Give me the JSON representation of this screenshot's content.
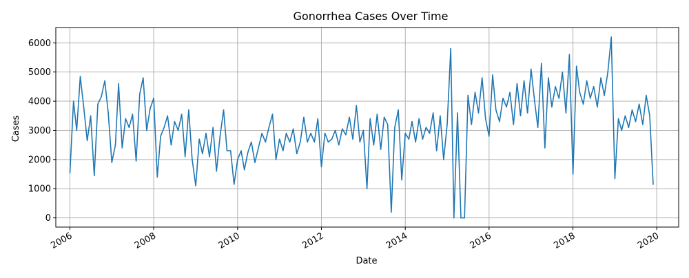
{
  "chart_data": {
    "type": "line",
    "title": "Gonorrhea Cases Over Time",
    "xlabel": "Date",
    "ylabel": "Cases",
    "xlim": [
      "2005-08-31",
      "2020-07-10"
    ],
    "ylim": [
      -315,
      6525
    ],
    "xticks": [
      "2006",
      "2008",
      "2010",
      "2012",
      "2014",
      "2016",
      "2018",
      "2020"
    ],
    "yticks": [
      0,
      1000,
      2000,
      3000,
      4000,
      5000,
      6000
    ],
    "grid": true,
    "line_color": "#1f77b4",
    "series": [
      {
        "name": "",
        "x": [
          "2006-01-01",
          "2006-02-01",
          "2006-03-01",
          "2006-04-01",
          "2006-05-01",
          "2006-06-01",
          "2006-07-01",
          "2006-08-01",
          "2006-09-01",
          "2006-10-01",
          "2006-11-01",
          "2006-12-01",
          "2007-01-01",
          "2007-02-01",
          "2007-03-01",
          "2007-04-01",
          "2007-05-01",
          "2007-06-01",
          "2007-07-01",
          "2007-08-01",
          "2007-09-01",
          "2007-10-01",
          "2007-11-01",
          "2007-12-01",
          "2008-01-01",
          "2008-02-01",
          "2008-03-01",
          "2008-04-01",
          "2008-05-01",
          "2008-06-01",
          "2008-07-01",
          "2008-08-01",
          "2008-09-01",
          "2008-10-01",
          "2008-11-01",
          "2008-12-01",
          "2009-01-01",
          "2009-02-01",
          "2009-03-01",
          "2009-04-01",
          "2009-05-01",
          "2009-06-01",
          "2009-07-01",
          "2009-08-01",
          "2009-09-01",
          "2009-10-01",
          "2009-11-01",
          "2009-12-01",
          "2010-01-01",
          "2010-02-01",
          "2010-03-01",
          "2010-04-01",
          "2010-05-01",
          "2010-06-01",
          "2010-07-01",
          "2010-08-01",
          "2010-09-01",
          "2010-10-01",
          "2010-11-01",
          "2010-12-01",
          "2011-01-01",
          "2011-02-01",
          "2011-03-01",
          "2011-04-01",
          "2011-05-01",
          "2011-06-01",
          "2011-07-01",
          "2011-08-01",
          "2011-09-01",
          "2011-10-01",
          "2011-11-01",
          "2011-12-01",
          "2012-01-01",
          "2012-02-01",
          "2012-03-01",
          "2012-04-01",
          "2012-05-01",
          "2012-06-01",
          "2012-07-01",
          "2012-08-01",
          "2012-09-01",
          "2012-10-01",
          "2012-11-01",
          "2012-12-01",
          "2013-01-01",
          "2013-02-01",
          "2013-03-01",
          "2013-04-01",
          "2013-05-01",
          "2013-06-01",
          "2013-07-01",
          "2013-08-01",
          "2013-09-01",
          "2013-10-01",
          "2013-11-01",
          "2013-12-01",
          "2014-01-01",
          "2014-02-01",
          "2014-03-01",
          "2014-04-01",
          "2014-05-01",
          "2014-06-01",
          "2014-07-01",
          "2014-08-01",
          "2014-09-01",
          "2014-10-01",
          "2014-11-01",
          "2014-12-01",
          "2015-01-01",
          "2015-02-01",
          "2015-03-01",
          "2015-04-01",
          "2015-05-01",
          "2015-06-01",
          "2015-07-01",
          "2015-08-01",
          "2015-09-01",
          "2015-10-01",
          "2015-11-01",
          "2015-12-01",
          "2016-01-01",
          "2016-02-01",
          "2016-03-01",
          "2016-04-01",
          "2016-05-01",
          "2016-06-01",
          "2016-07-01",
          "2016-08-01",
          "2016-09-01",
          "2016-10-01",
          "2016-11-01",
          "2016-12-01",
          "2017-01-01",
          "2017-02-01",
          "2017-03-01",
          "2017-04-01",
          "2017-05-01",
          "2017-06-01",
          "2017-07-01",
          "2017-08-01",
          "2017-09-01",
          "2017-10-01",
          "2017-11-01",
          "2017-12-01",
          "2018-01-01",
          "2018-02-01",
          "2018-03-01",
          "2018-04-01",
          "2018-05-01",
          "2018-06-01",
          "2018-07-01",
          "2018-08-01",
          "2018-09-01",
          "2018-10-01",
          "2018-11-01",
          "2018-12-01",
          "2019-01-01",
          "2019-02-01",
          "2019-03-01",
          "2019-04-01",
          "2019-05-01",
          "2019-06-01",
          "2019-07-01",
          "2019-08-01",
          "2019-09-01",
          "2019-10-01",
          "2019-11-01",
          "2019-12-01"
        ],
        "y": [
          1550,
          4000,
          3000,
          4850,
          3800,
          2650,
          3500,
          1450,
          3900,
          4150,
          4700,
          3600,
          1900,
          2500,
          4600,
          2400,
          3400,
          3100,
          3550,
          1950,
          4250,
          4800,
          3000,
          3750,
          4100,
          1400,
          2800,
          3100,
          3500,
          2500,
          3300,
          3000,
          3550,
          2100,
          3700,
          2000,
          1100,
          2700,
          2200,
          2900,
          2100,
          3100,
          1600,
          2800,
          3700,
          2300,
          2300,
          1150,
          2000,
          2300,
          1650,
          2250,
          2600,
          1900,
          2400,
          2900,
          2600,
          3100,
          3550,
          2000,
          2700,
          2300,
          2900,
          2600,
          3050,
          2200,
          2600,
          3450,
          2600,
          2900,
          2600,
          3400,
          1750,
          2900,
          2600,
          2700,
          3000,
          2500,
          3050,
          2850,
          3450,
          2700,
          3850,
          2600,
          3000,
          1000,
          3400,
          2500,
          3550,
          2350,
          3450,
          3200,
          200,
          3100,
          3700,
          1300,
          2900,
          2700,
          3300,
          2600,
          3400,
          2700,
          3100,
          2900,
          3600,
          2300,
          3500,
          2000,
          3200,
          5800,
          0,
          3600,
          0,
          0,
          4200,
          3200,
          4300,
          3600,
          4800,
          3400,
          2800,
          4900,
          3700,
          3300,
          4100,
          3800,
          4300,
          3200,
          4600,
          3500,
          4700,
          3600,
          5100,
          4000,
          3100,
          5300,
          2400,
          4800,
          3800,
          4500,
          4100,
          5000,
          3600,
          5600,
          1500,
          5200,
          4300,
          3900,
          4700,
          4100,
          4500,
          3800,
          4800,
          4200,
          5000,
          6200,
          1350,
          3400,
          3000,
          3500,
          3100,
          3700,
          3300,
          3900,
          3200,
          4200,
          3500,
          1150
        ]
      }
    ]
  }
}
